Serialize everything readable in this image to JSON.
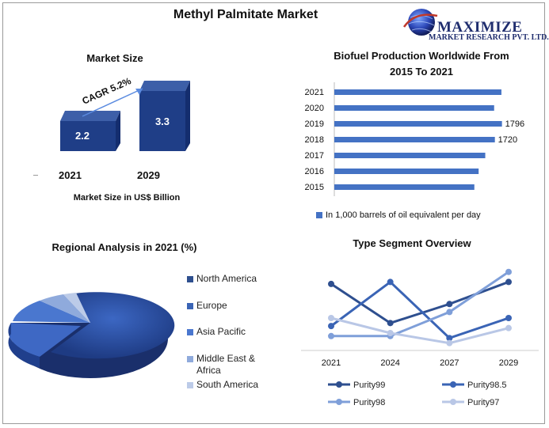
{
  "title": "Methyl Palmitate Market",
  "logo": {
    "brand": "MAXIMIZE",
    "subtitle": "MARKET RESEARCH PVT. LTD.",
    "icon": "globe-icon"
  },
  "market_size": {
    "title": "Market Size",
    "cagr": "CAGR 5.2%",
    "caption": "Market Size in US$ Billion",
    "years": [
      "2021",
      "2029"
    ],
    "values": [
      "2.2",
      "3.3"
    ]
  },
  "biofuel": {
    "title_line1": "Biofuel Production Worldwide From",
    "title_line2": "2015 To 2021",
    "legend": "In 1,000 barrels of oil equivalent per day"
  },
  "regional": {
    "title": "Regional Analysis in 2021 (%)",
    "legend": [
      "North America",
      "Europe",
      "Asia Pacific",
      "Middle East & Africa",
      "South America"
    ]
  },
  "type_segment": {
    "title": "Type Segment Overview"
  },
  "chart_data": [
    {
      "type": "bar",
      "title": "Market Size",
      "categories": [
        "2021",
        "2029"
      ],
      "values": [
        2.2,
        3.3
      ],
      "annotation": "CAGR 5.2%",
      "xlabel": "Market Size in US$ Billion"
    },
    {
      "type": "bar",
      "orientation": "horizontal",
      "title": "Biofuel Production Worldwide From 2015 To 2021",
      "categories": [
        "2021",
        "2020",
        "2019",
        "2018",
        "2017",
        "2016",
        "2015"
      ],
      "values": [
        1790,
        1712,
        1796,
        1720,
        1617,
        1546,
        1500
      ],
      "data_labels": [
        "",
        "",
        "1796",
        "1720",
        "",
        "",
        ""
      ],
      "legend": "In 1,000 barrels of oil equivalent per day",
      "xlim": [
        0,
        1850
      ],
      "color": "#4472c4"
    },
    {
      "type": "pie",
      "title": "Regional Analysis in 2021 (%)",
      "labels": [
        "North America",
        "Europe",
        "Asia Pacific",
        "Middle East & Africa",
        "South America"
      ],
      "values": [
        60,
        14,
        13,
        7,
        6
      ],
      "colors": [
        "#2e4f8f",
        "#3a64b5",
        "#4a77cf",
        "#8faadc",
        "#bccbe8"
      ]
    },
    {
      "type": "line",
      "title": "Type Segment Overview",
      "x": [
        "2021",
        "2024",
        "2027",
        "2029"
      ],
      "series": [
        {
          "name": "Purity99",
          "values": [
            6.4,
            2.5,
            4.4,
            6.6
          ],
          "color": "#2e4f8f"
        },
        {
          "name": "Purity98.5",
          "values": [
            2.2,
            6.6,
            1.0,
            3.0
          ],
          "color": "#3a64b5"
        },
        {
          "name": "Purity98",
          "values": [
            1.2,
            1.2,
            3.6,
            7.6
          ],
          "color": "#7f9fd9"
        },
        {
          "name": "Purity97",
          "values": [
            3.0,
            1.5,
            0.5,
            2.0
          ],
          "color": "#b9c7e6"
        }
      ],
      "ylim": [
        0,
        9
      ],
      "legend_position": "bottom"
    }
  ]
}
